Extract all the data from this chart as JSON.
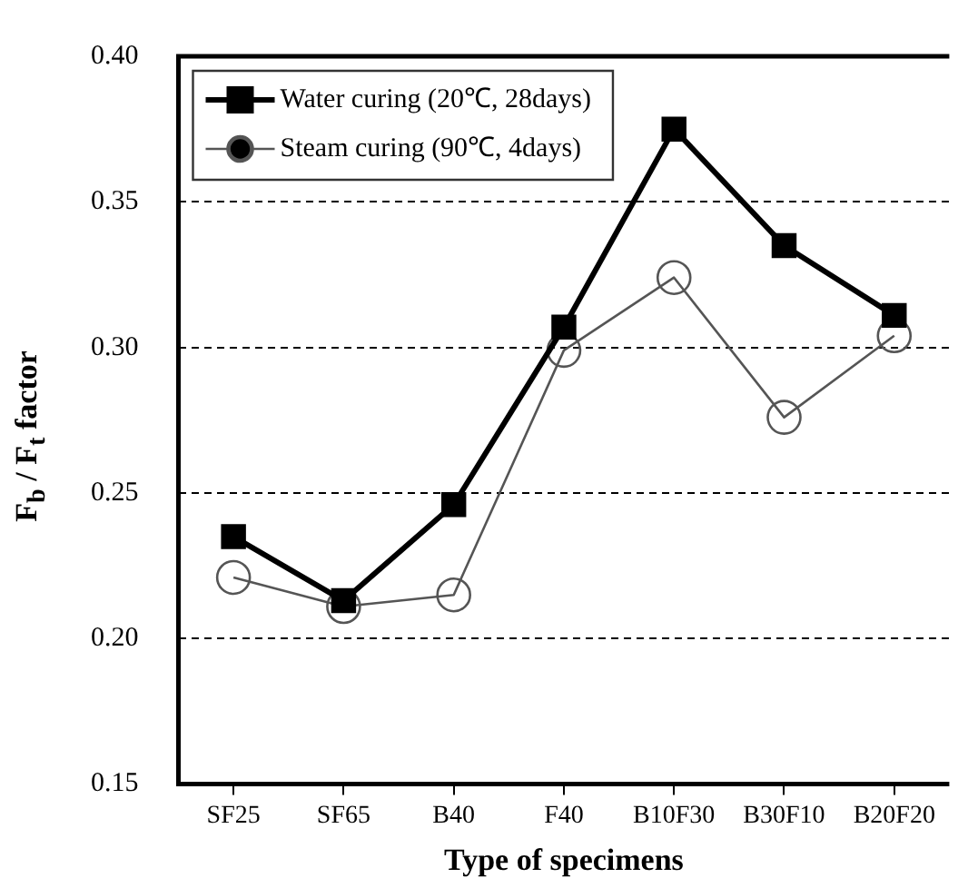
{
  "chart_data": {
    "type": "line",
    "xlabel": "Type of specimens",
    "ylabel": "F$_{b}$ / F$_{t}$ factor",
    "categories": [
      "SF25",
      "SF65",
      "B40",
      "F40",
      "B10F30",
      "B30F10",
      "B20F20"
    ],
    "series": [
      {
        "name": "Water curing (20℃, 28days)",
        "color": "#000000",
        "marker": "square",
        "values": [
          0.235,
          0.213,
          0.246,
          0.307,
          0.375,
          0.335,
          0.311
        ]
      },
      {
        "name": "Steam curing (90℃, 4days)",
        "color": "#555555",
        "marker": "circle",
        "values": [
          0.221,
          0.211,
          0.215,
          0.299,
          0.324,
          0.276,
          0.304
        ]
      }
    ],
    "ylim": [
      0.15,
      0.4
    ],
    "yticks": [
      0.15,
      {
        "value": 0.2,
        "label": "0.20"
      },
      0.25,
      {
        "value": 0.3,
        "label": "0.30"
      },
      0.35,
      {
        "value": 0.4,
        "label": "0.40"
      }
    ],
    "grid": "y",
    "legend": "top left",
    "line_style": "solid"
  }
}
